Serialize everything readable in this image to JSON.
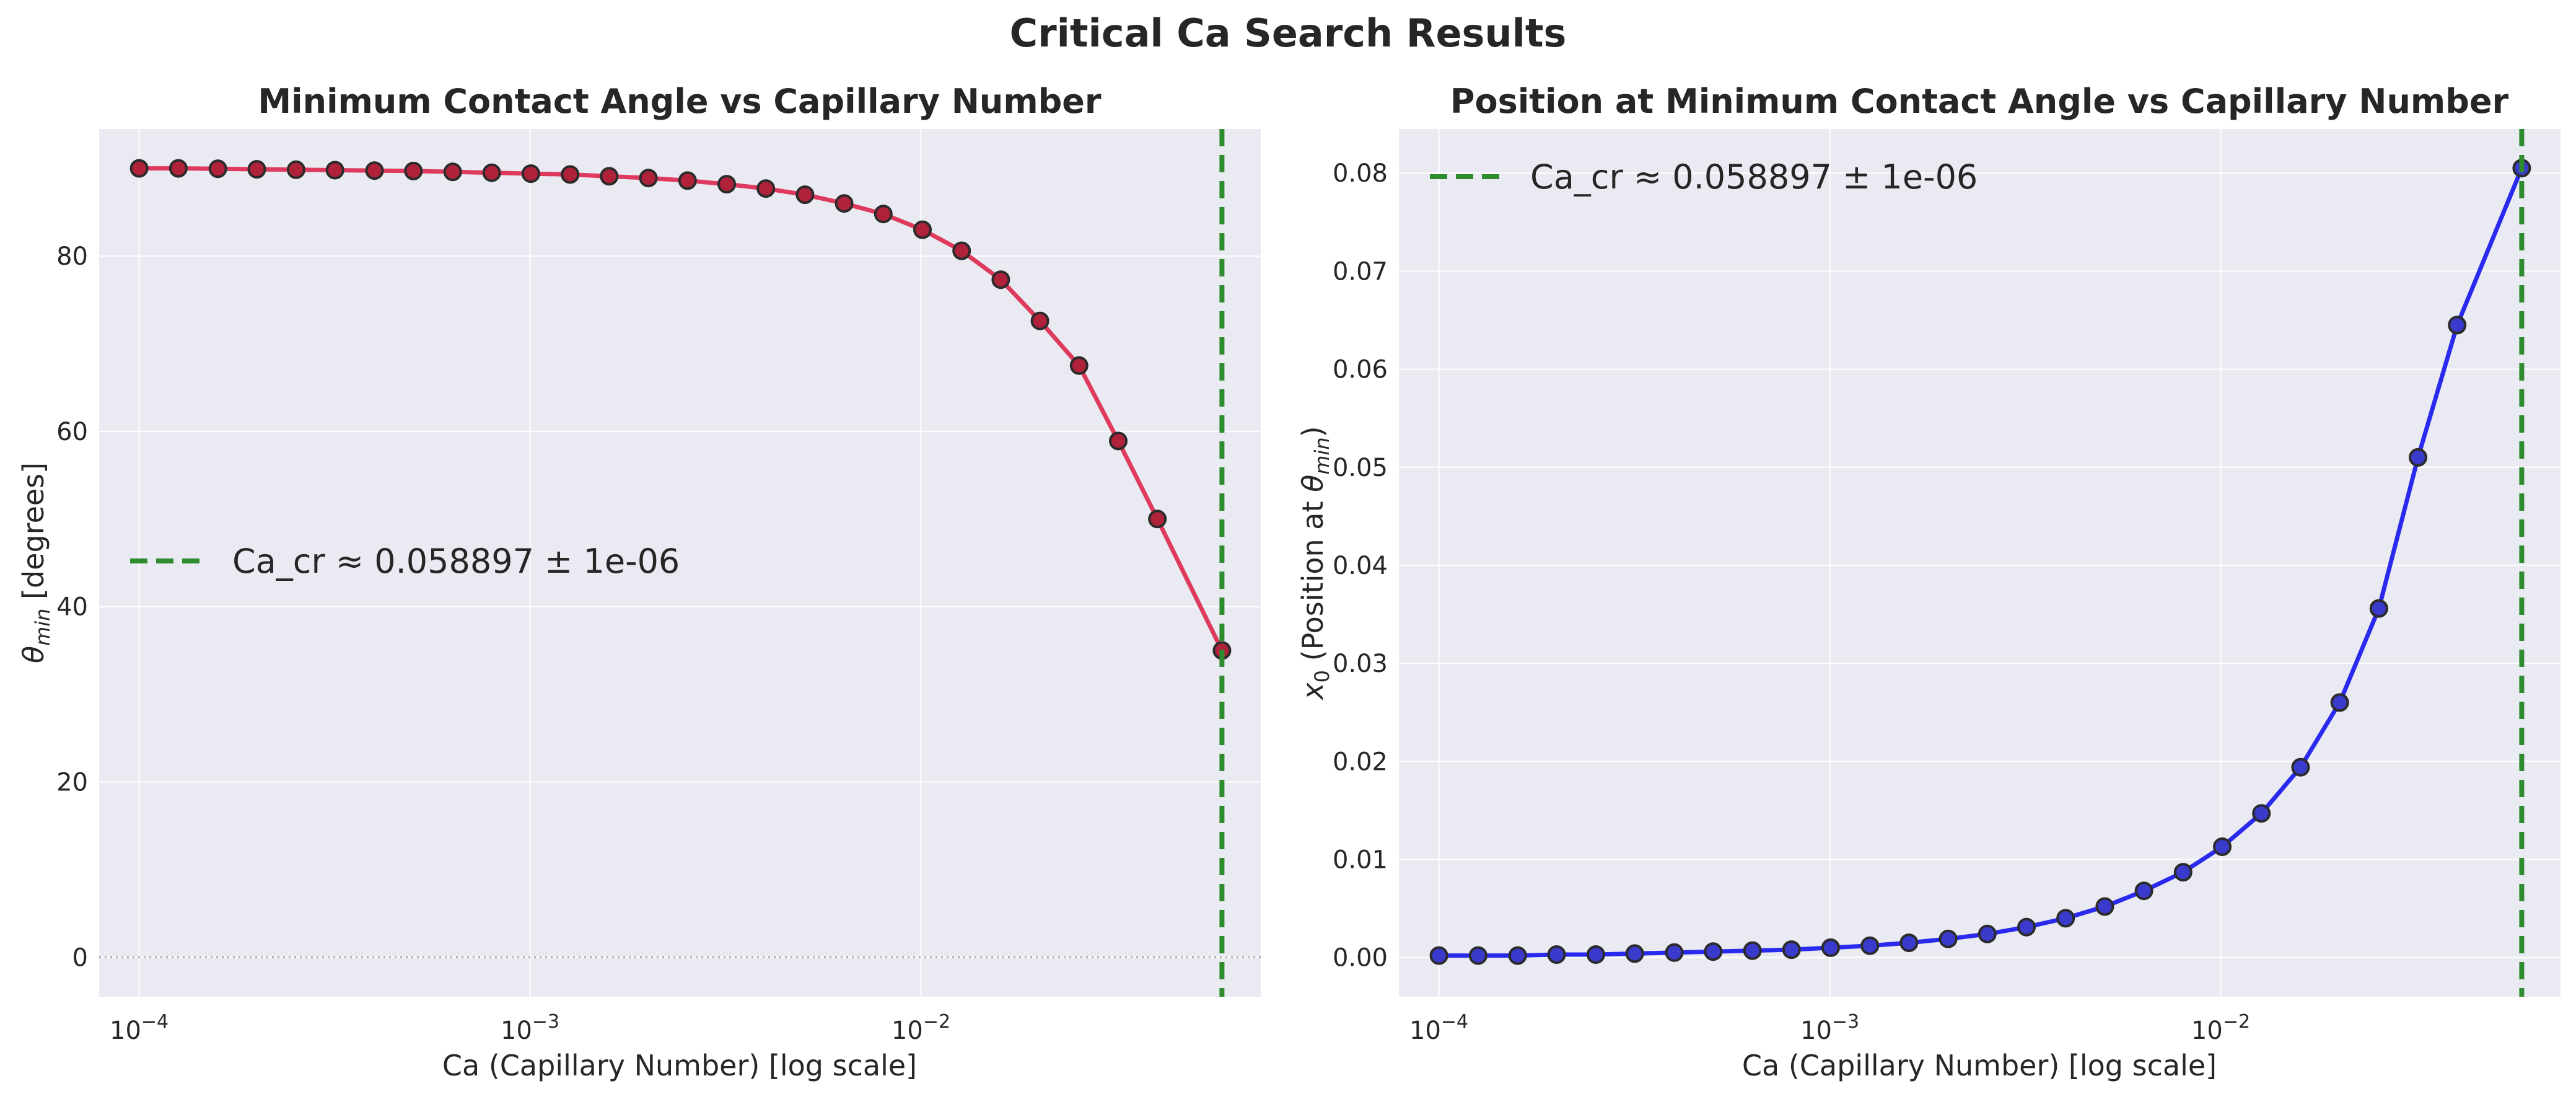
{
  "suptitle": "Critical Ca Search Results",
  "colors": {
    "axes_bg": "#eaeaf2",
    "grid": "#ffffff",
    "theta_line": "#dc143c",
    "x0_line": "#0000ee",
    "critical_line": "#2e8b2e",
    "marker_edge": "#2b2b2b"
  },
  "chart_data": [
    {
      "type": "line",
      "title": "Minimum Contact Angle vs Capillary Number",
      "xlabel": "Ca (Capillary Number) [log scale]",
      "ylabel_parts": {
        "sym": "θ",
        "sub": "min",
        "rest": " [degrees]"
      },
      "xscale": "log",
      "xlim": [
        7.9e-05,
        0.074
      ],
      "ylim": [
        -4.5,
        94.5
      ],
      "xticks": [
        0.0001,
        0.001,
        0.01
      ],
      "xtick_labels": [
        {
          "base": "10",
          "exp": "−4"
        },
        {
          "base": "10",
          "exp": "−3"
        },
        {
          "base": "10",
          "exp": "−2"
        }
      ],
      "yticks": [
        0,
        20,
        40,
        60,
        80
      ],
      "ytick_labels": [
        "0",
        "20",
        "40",
        "60",
        "80"
      ],
      "grid": true,
      "hline": {
        "y": 0,
        "style": "dotted",
        "color": "#aaaaaa"
      },
      "vline": {
        "x": 0.058897,
        "label": "Ca_cr ≈ 0.058897 ± 1e-06"
      },
      "legend_loc": "center-left",
      "series": [
        {
          "color": "#dc143c",
          "marker_face": "#b0213a",
          "x": [
            0.0001,
            0.000126,
            0.000159,
            0.0002,
            0.000252,
            0.000317,
            0.0004,
            0.000503,
            0.000634,
            0.000798,
            0.001005,
            0.001266,
            0.001594,
            0.002008,
            0.002529,
            0.003185,
            0.004011,
            0.005052,
            0.006362,
            0.008013,
            0.010091,
            0.012709,
            0.016006,
            0.020158,
            0.025387,
            0.031972,
            0.040265,
            0.058897
          ],
          "y": [
            90.0,
            90.0,
            89.95,
            89.9,
            89.85,
            89.8,
            89.75,
            89.7,
            89.6,
            89.5,
            89.4,
            89.3,
            89.1,
            88.9,
            88.6,
            88.2,
            87.7,
            87.0,
            86.0,
            84.8,
            83.0,
            80.6,
            77.3,
            72.6,
            67.5,
            58.9,
            50.0,
            35.0
          ]
        }
      ]
    },
    {
      "type": "line",
      "title": "Position at Minimum Contact Angle vs Capillary Number",
      "xlabel": "Ca (Capillary Number) [log scale]",
      "ylabel_parts": {
        "pre_sym": "x",
        "pre_sub": "0",
        "mid": " (Position at ",
        "sym": "θ",
        "sub": "min",
        "rest": ")"
      },
      "xscale": "log",
      "xlim": [
        7.9e-05,
        0.074
      ],
      "ylim": [
        -0.004,
        0.0845
      ],
      "xticks": [
        0.0001,
        0.001,
        0.01
      ],
      "xtick_labels": [
        {
          "base": "10",
          "exp": "−4"
        },
        {
          "base": "10",
          "exp": "−3"
        },
        {
          "base": "10",
          "exp": "−2"
        }
      ],
      "yticks": [
        0.0,
        0.01,
        0.02,
        0.03,
        0.04,
        0.05,
        0.06,
        0.07,
        0.08
      ],
      "ytick_labels": [
        "0.00",
        "0.01",
        "0.02",
        "0.03",
        "0.04",
        "0.05",
        "0.06",
        "0.07",
        "0.08"
      ],
      "grid": true,
      "vline": {
        "x": 0.058897,
        "label": "Ca_cr ≈ 0.058897 ± 1e-06"
      },
      "legend_loc": "upper-left",
      "series": [
        {
          "color": "#0000ee",
          "marker_face": "#3a3acc",
          "x": [
            0.0001,
            0.000126,
            0.000159,
            0.0002,
            0.000252,
            0.000317,
            0.0004,
            0.000503,
            0.000634,
            0.000798,
            0.001005,
            0.001266,
            0.001594,
            0.002008,
            0.002529,
            0.003185,
            0.004011,
            0.005052,
            0.006362,
            0.008013,
            0.010091,
            0.012709,
            0.016006,
            0.020158,
            0.025387,
            0.031972,
            0.040265,
            0.058897
          ],
          "y": [
            0.0002,
            0.0002,
            0.0002,
            0.0003,
            0.0003,
            0.0004,
            0.0005,
            0.0006,
            0.0007,
            0.0008,
            0.001,
            0.0012,
            0.0015,
            0.0019,
            0.0024,
            0.0031,
            0.004,
            0.0052,
            0.0068,
            0.0087,
            0.0113,
            0.0147,
            0.0194,
            0.026,
            0.0356,
            0.051,
            0.0645,
            0.0805
          ]
        }
      ]
    }
  ]
}
